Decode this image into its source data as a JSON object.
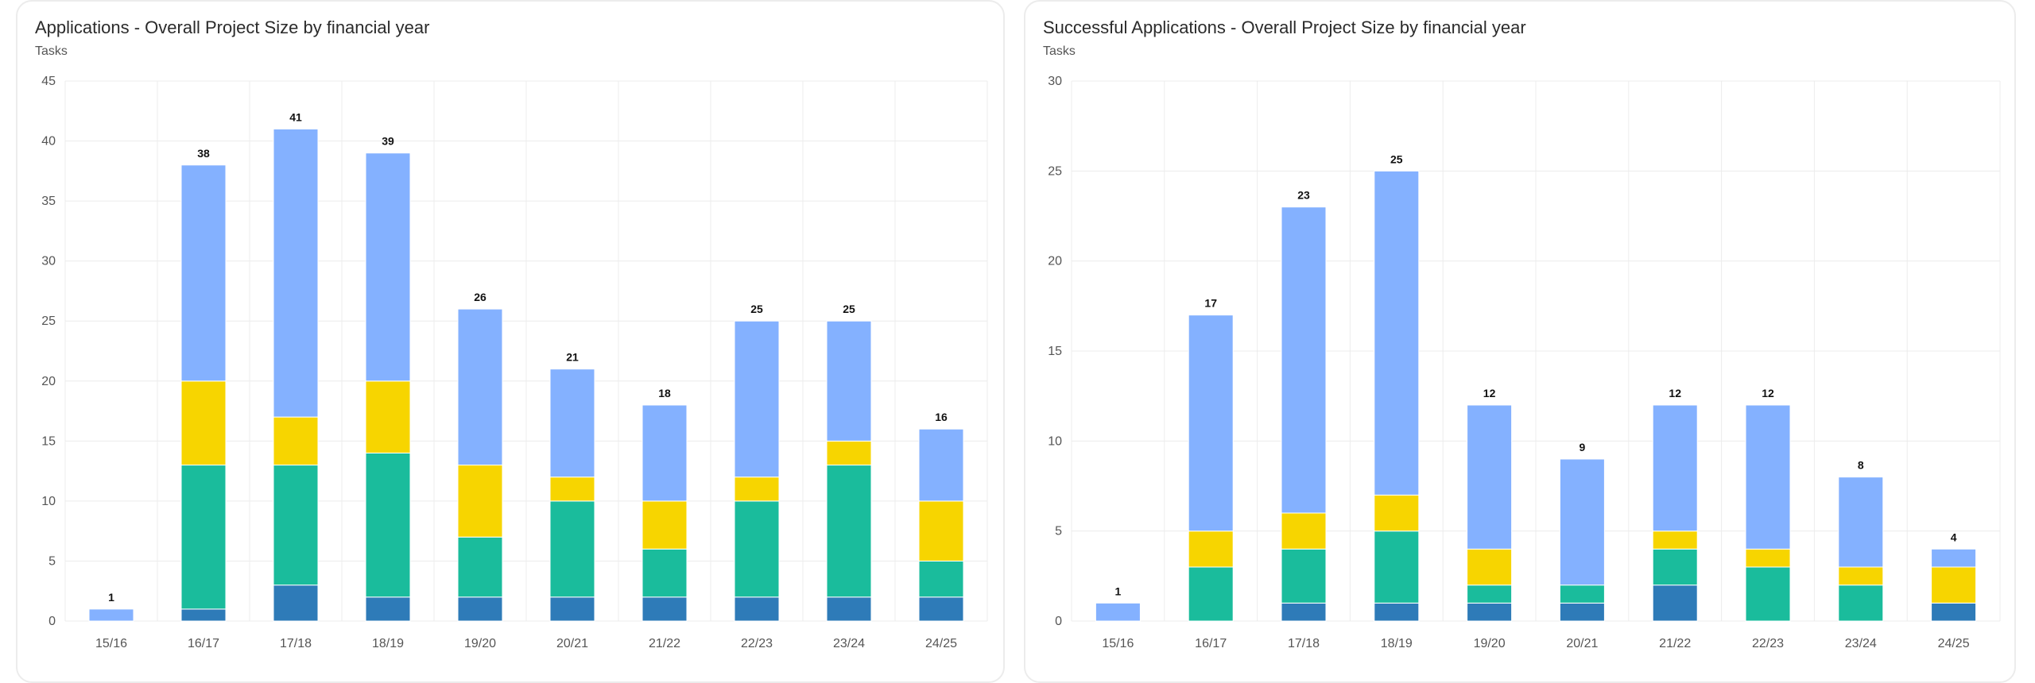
{
  "colors": {
    "series_a": "#2e7bb8",
    "series_b": "#1abc9c",
    "series_c": "#f7d500",
    "series_d": "#84b1ff",
    "grid": "#ececec",
    "tick": "#555555"
  },
  "chart_data": [
    {
      "type": "bar",
      "stacked": true,
      "title": "Applications - Overall Project Size by financial year",
      "subtitle": "Tasks",
      "xlabel": "",
      "ylabel": "",
      "ylim": [
        0,
        45
      ],
      "yticks": [
        0,
        5,
        10,
        15,
        20,
        25,
        30,
        35,
        40,
        45
      ],
      "grid": true,
      "categories": [
        "15/16",
        "16/17",
        "17/18",
        "18/19",
        "19/20",
        "20/21",
        "21/22",
        "22/23",
        "23/24",
        "24/25"
      ],
      "series": [
        {
          "name": "series_a",
          "values": [
            0,
            1,
            3,
            2,
            2,
            2,
            2,
            2,
            2,
            2
          ]
        },
        {
          "name": "series_b",
          "values": [
            0,
            12,
            10,
            12,
            5,
            8,
            4,
            8,
            11,
            3
          ]
        },
        {
          "name": "series_c",
          "values": [
            0,
            7,
            4,
            6,
            6,
            2,
            4,
            2,
            2,
            5
          ]
        },
        {
          "name": "series_d",
          "values": [
            1,
            18,
            24,
            19,
            13,
            9,
            8,
            13,
            10,
            6
          ]
        }
      ],
      "totals": [
        1,
        38,
        41,
        39,
        26,
        21,
        18,
        25,
        25,
        16
      ]
    },
    {
      "type": "bar",
      "stacked": true,
      "title": "Successful Applications - Overall Project Size by financial year",
      "subtitle": "Tasks",
      "xlabel": "",
      "ylabel": "",
      "ylim": [
        0,
        30
      ],
      "yticks": [
        0,
        5,
        10,
        15,
        20,
        25,
        30
      ],
      "grid": true,
      "categories": [
        "15/16",
        "16/17",
        "17/18",
        "18/19",
        "19/20",
        "20/21",
        "21/22",
        "22/23",
        "23/24",
        "24/25"
      ],
      "series": [
        {
          "name": "series_a",
          "values": [
            0,
            0,
            1,
            1,
            1,
            1,
            2,
            0,
            0,
            1
          ]
        },
        {
          "name": "series_b",
          "values": [
            0,
            3,
            3,
            4,
            1,
            1,
            2,
            3,
            2,
            0
          ]
        },
        {
          "name": "series_c",
          "values": [
            0,
            2,
            2,
            2,
            2,
            0,
            1,
            1,
            1,
            2
          ]
        },
        {
          "name": "series_d",
          "values": [
            1,
            12,
            17,
            18,
            8,
            7,
            7,
            8,
            5,
            1
          ]
        }
      ],
      "totals": [
        1,
        17,
        23,
        25,
        12,
        9,
        12,
        12,
        8,
        4
      ]
    }
  ]
}
